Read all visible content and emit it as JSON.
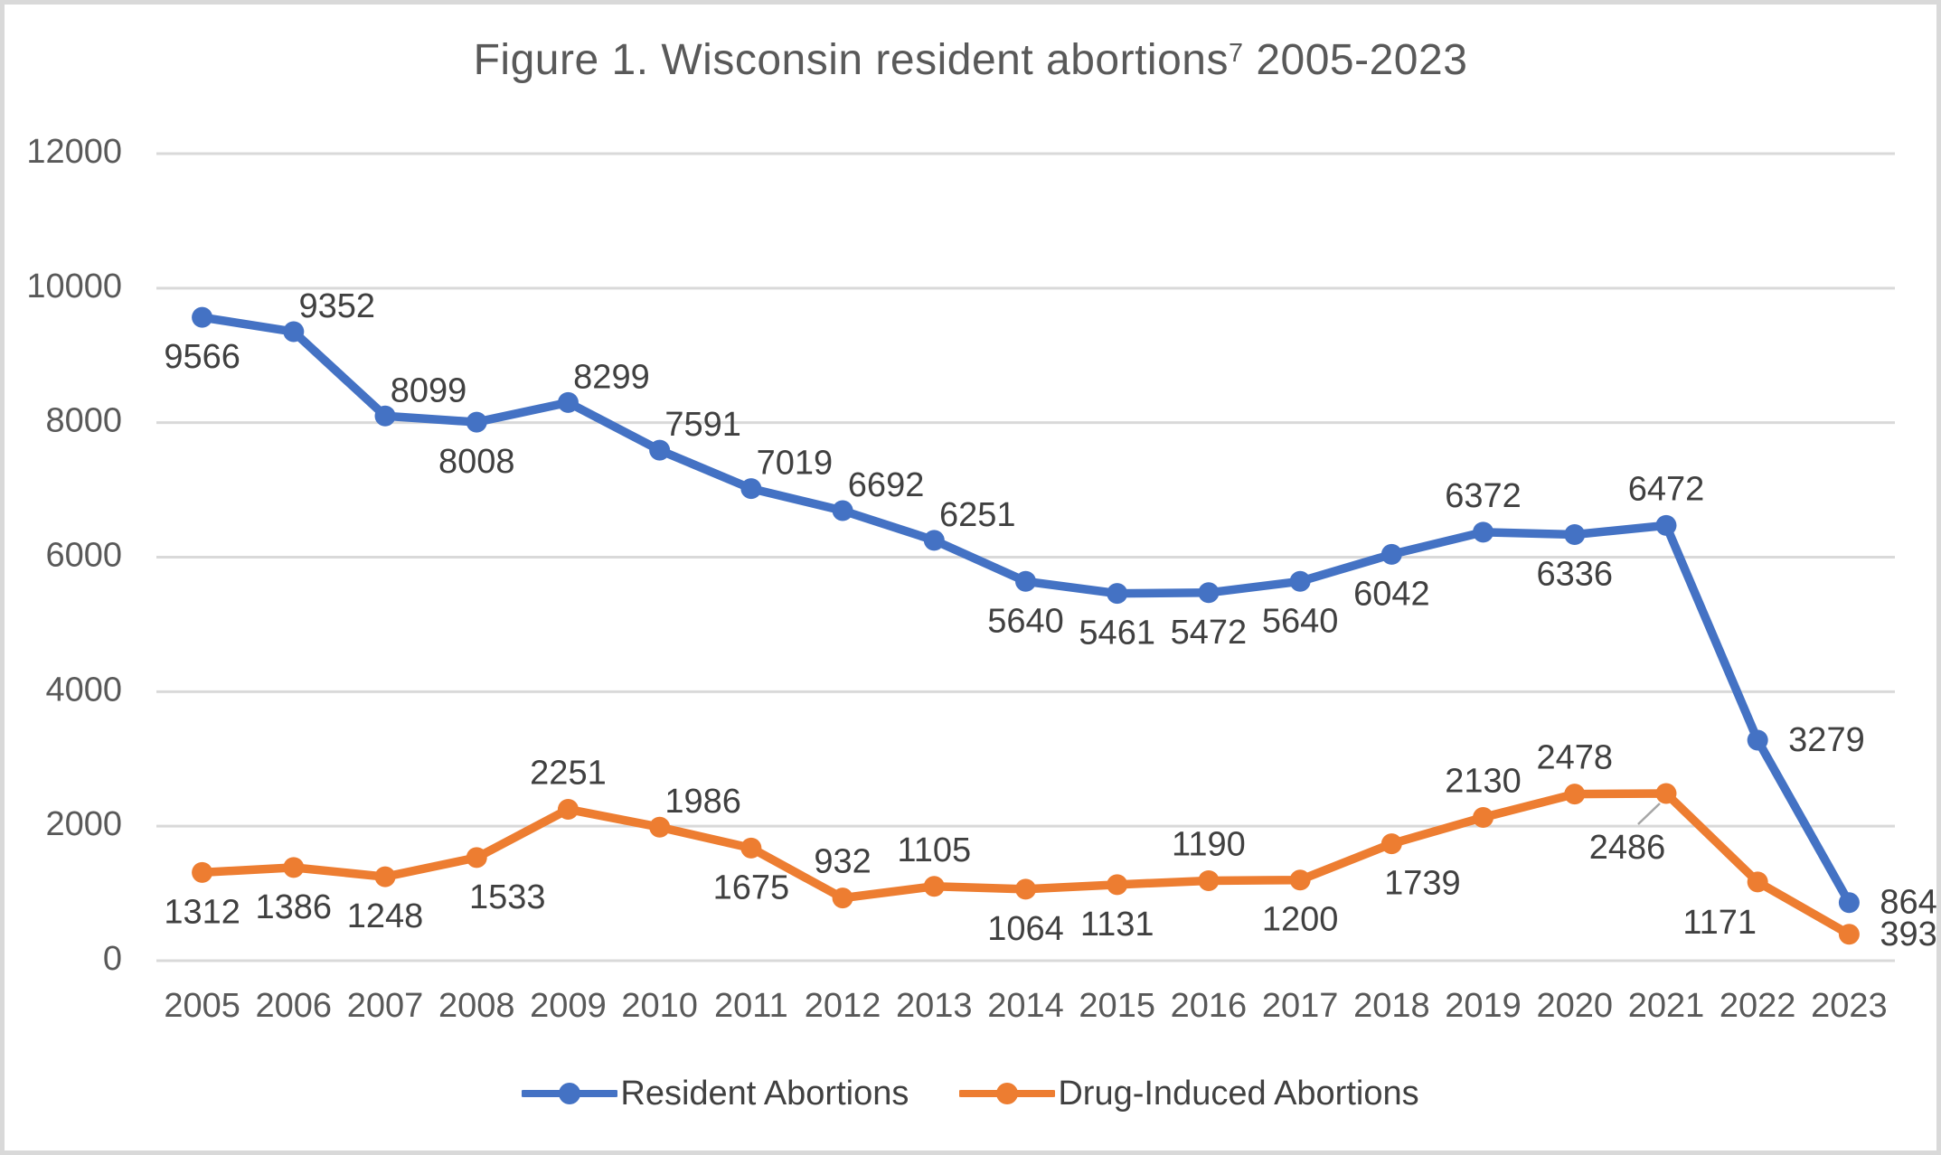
{
  "title": {
    "prefix": "Figure 1. Wisconsin resident abortions",
    "superscript": "7",
    "suffix": " 2005-2023"
  },
  "colors": {
    "resident_series": "#4472C4",
    "drug_induced_series": "#ED7D31",
    "gridline": "#D9D9D9",
    "axis_text": "#595959",
    "data_label_text": "#404040",
    "frame_border": "#D9D9D9",
    "leader_line": "#A6A6A6",
    "background": "#FFFFFF"
  },
  "chart_data": {
    "type": "line",
    "title": "Figure 1. Wisconsin resident abortions7 2005-2023",
    "categories": [
      "2005",
      "2006",
      "2007",
      "2008",
      "2009",
      "2010",
      "2011",
      "2012",
      "2013",
      "2014",
      "2015",
      "2016",
      "2017",
      "2018",
      "2019",
      "2020",
      "2021",
      "2022",
      "2023"
    ],
    "series": [
      {
        "name": "Resident Abortions",
        "color": "#4472C4",
        "values": [
          9566,
          9352,
          8099,
          8008,
          8299,
          7591,
          7019,
          6692,
          6251,
          5640,
          5461,
          5472,
          5640,
          6042,
          6372,
          6336,
          6472,
          3279,
          864
        ],
        "label_positions": [
          "below",
          "above-right",
          "above-right",
          "below",
          "above-right",
          "above-right",
          "above-right",
          "above-right",
          "above-right",
          "below",
          "below",
          "below",
          "below",
          "below",
          "above",
          "below",
          "above",
          "right",
          "right"
        ]
      },
      {
        "name": "Drug-Induced Abortions",
        "color": "#ED7D31",
        "values": [
          1312,
          1386,
          1248,
          1533,
          2251,
          1986,
          1675,
          932,
          1105,
          1064,
          1131,
          1190,
          1200,
          1739,
          2130,
          2478,
          2486,
          1171,
          393
        ],
        "label_positions": [
          "below",
          "below",
          "below",
          "below-right",
          "above",
          "above-right",
          "below",
          "above",
          "above",
          "below",
          "below",
          "above",
          "below",
          "below-right",
          "above",
          "above",
          "callout-below",
          "below-left",
          "right"
        ]
      }
    ],
    "xlabel": "",
    "ylabel": "",
    "ylim": [
      0,
      12000
    ],
    "yticks": [
      0,
      2000,
      4000,
      6000,
      8000,
      10000,
      12000
    ],
    "grid": true,
    "legend_position": "bottom",
    "data_labels": true,
    "annotations": [
      {
        "type": "leader_line",
        "series": "Drug-Induced Abortions",
        "category": "2021",
        "value": 2486
      }
    ]
  },
  "legend": {
    "items": [
      {
        "label": "Resident Abortions",
        "color": "#4472C4"
      },
      {
        "label": "Drug-Induced Abortions",
        "color": "#ED7D31"
      }
    ]
  }
}
